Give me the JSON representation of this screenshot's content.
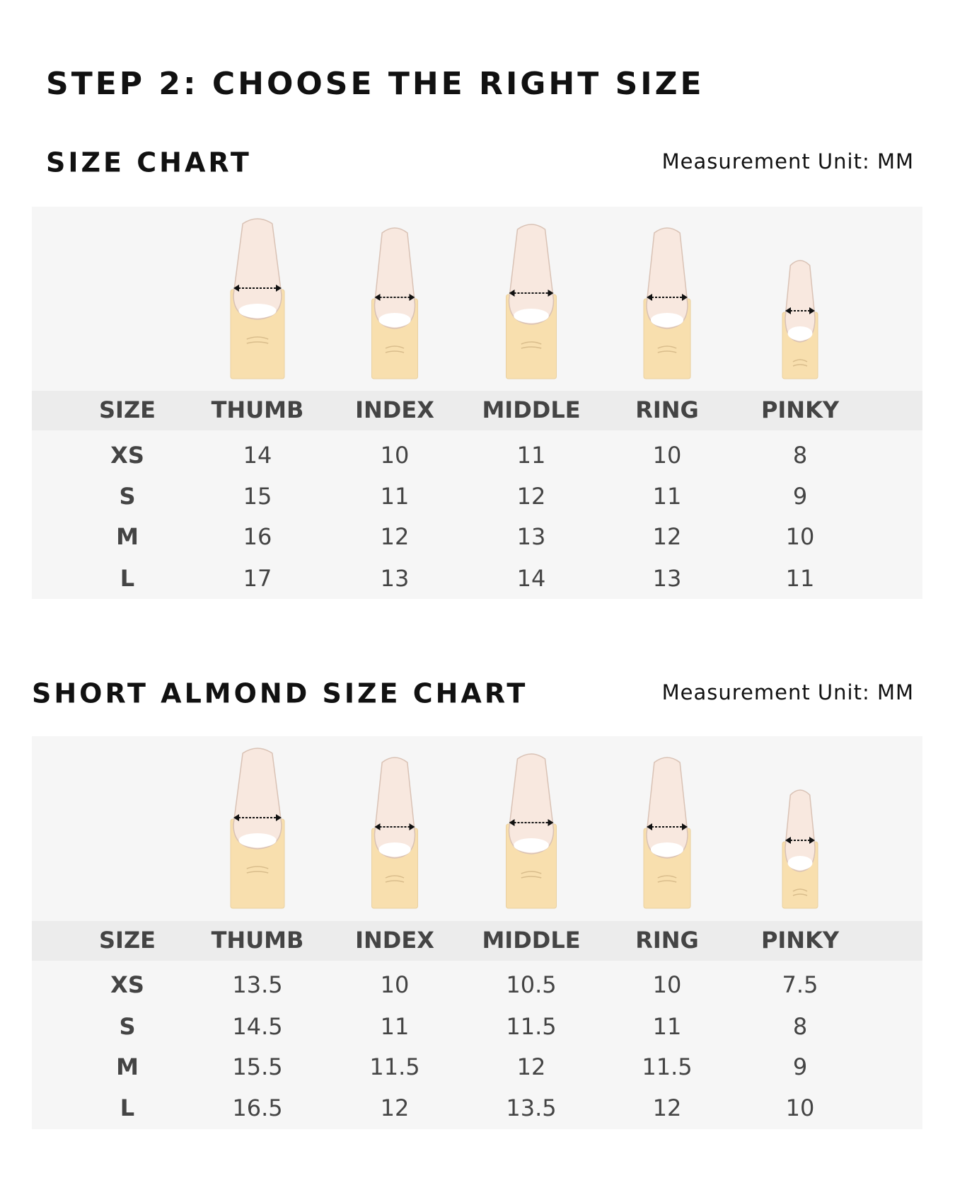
{
  "title": "STEP 2: CHOOSE THE RIGHT SIZE",
  "sections": [
    {
      "heading": "SIZE CHART",
      "unit": "Measurement Unit: MM",
      "table": {
        "header": [
          "SIZE",
          "THUMB",
          "INDEX",
          "MIDDLE",
          "RING",
          "PINKY"
        ],
        "rows": [
          [
            "XS",
            "14",
            "10",
            "11",
            "10",
            "8"
          ],
          [
            "S",
            "15",
            "11",
            "12",
            "11",
            "9"
          ],
          [
            "M",
            "16",
            "12",
            "13",
            "12",
            "10"
          ],
          [
            "L",
            "17",
            "13",
            "14",
            "13",
            "11"
          ]
        ]
      }
    },
    {
      "heading": "SHORT ALMOND SIZE CHART",
      "unit": "Measurement Unit: MM",
      "table": {
        "header": [
          "SIZE",
          "THUMB",
          "INDEX",
          "MIDDLE",
          "RING",
          "PINKY"
        ],
        "rows": [
          [
            "XS",
            "13.5",
            "10",
            "10.5",
            "10",
            "7.5"
          ],
          [
            "S",
            "14.5",
            "11",
            "11.5",
            "11",
            "8"
          ],
          [
            "M",
            "15.5",
            "11.5",
            "12",
            "11.5",
            "9"
          ],
          [
            "L",
            "16.5",
            "12",
            "13.5",
            "12",
            "10"
          ]
        ]
      }
    }
  ]
}
